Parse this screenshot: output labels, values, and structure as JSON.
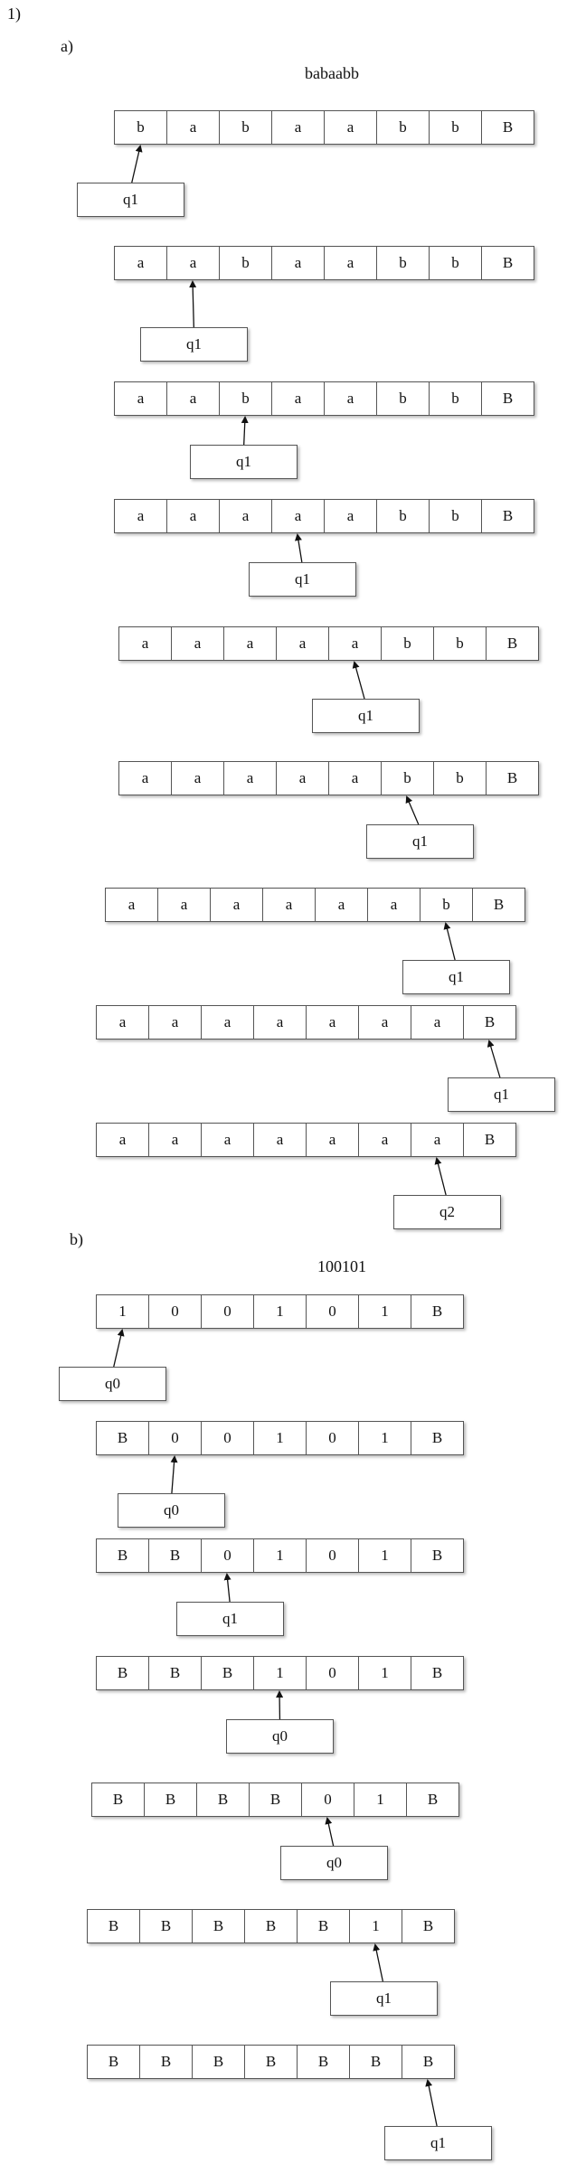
{
  "problem_label": "1)",
  "part_a": {
    "label": "a)",
    "input": "babaabb",
    "steps": [
      {
        "tape": [
          "b",
          "a",
          "b",
          "a",
          "a",
          "b",
          "b",
          "B"
        ],
        "head": 0,
        "state": "q1"
      },
      {
        "tape": [
          "a",
          "a",
          "b",
          "a",
          "a",
          "b",
          "b",
          "B"
        ],
        "head": 1,
        "state": "q1"
      },
      {
        "tape": [
          "a",
          "a",
          "b",
          "a",
          "a",
          "b",
          "b",
          "B"
        ],
        "head": 2,
        "state": "q1"
      },
      {
        "tape": [
          "a",
          "a",
          "a",
          "a",
          "a",
          "b",
          "b",
          "B"
        ],
        "head": 3,
        "state": "q1"
      },
      {
        "tape": [
          "a",
          "a",
          "a",
          "a",
          "a",
          "b",
          "b",
          "B"
        ],
        "head": 4,
        "state": "q1"
      },
      {
        "tape": [
          "a",
          "a",
          "a",
          "a",
          "a",
          "b",
          "b",
          "B"
        ],
        "head": 5,
        "state": "q1"
      },
      {
        "tape": [
          "a",
          "a",
          "a",
          "a",
          "a",
          "a",
          "b",
          "B"
        ],
        "head": 6,
        "state": "q1"
      },
      {
        "tape": [
          "a",
          "a",
          "a",
          "a",
          "a",
          "a",
          "a",
          "B"
        ],
        "head": 7,
        "state": "q1"
      },
      {
        "tape": [
          "a",
          "a",
          "a",
          "a",
          "a",
          "a",
          "a",
          "B"
        ],
        "head": 6,
        "state": "q2"
      }
    ]
  },
  "part_b": {
    "label": "b)",
    "input": "100101",
    "steps": [
      {
        "tape": [
          "1",
          "0",
          "0",
          "1",
          "0",
          "1",
          "B"
        ],
        "head": 0,
        "state": "q0"
      },
      {
        "tape": [
          "B",
          "0",
          "0",
          "1",
          "0",
          "1",
          "B"
        ],
        "head": 1,
        "state": "q0"
      },
      {
        "tape": [
          "B",
          "B",
          "0",
          "1",
          "0",
          "1",
          "B"
        ],
        "head": 2,
        "state": "q1"
      },
      {
        "tape": [
          "B",
          "B",
          "B",
          "1",
          "0",
          "1",
          "B"
        ],
        "head": 3,
        "state": "q0"
      },
      {
        "tape": [
          "B",
          "B",
          "B",
          "B",
          "0",
          "1",
          "B"
        ],
        "head": 4,
        "state": "q0"
      },
      {
        "tape": [
          "B",
          "B",
          "B",
          "B",
          "B",
          "1",
          "B"
        ],
        "head": 5,
        "state": "q1"
      },
      {
        "tape": [
          "B",
          "B",
          "B",
          "B",
          "B",
          "B",
          "B"
        ],
        "head": 6,
        "state": "q1"
      }
    ]
  }
}
